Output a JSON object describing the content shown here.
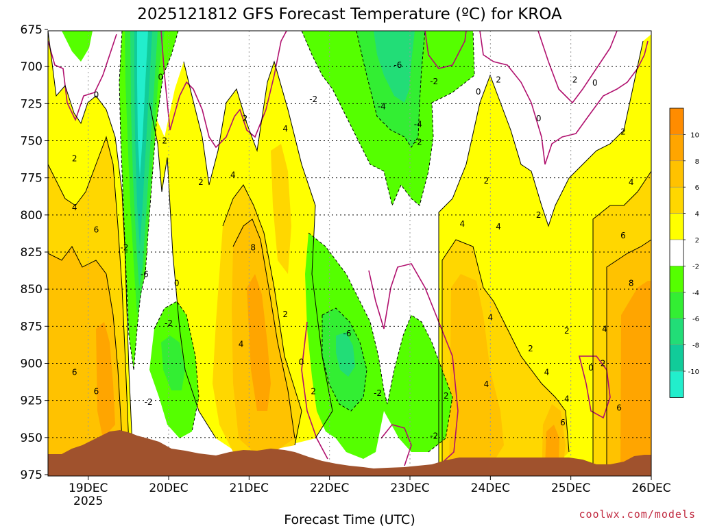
{
  "chart_data": {
    "type": "heatmap",
    "title": "2025121812 GFS Forecast Temperature (ºC) for KROA",
    "xlabel": "Forecast Time (UTC)",
    "ylabel": "",
    "credit": "coolwx.com/models",
    "y_axis": {
      "label_values": [
        "675",
        "700",
        "725",
        "750",
        "775",
        "800",
        "825",
        "850",
        "875",
        "900",
        "925",
        "950",
        "975"
      ],
      "range": [
        975,
        675
      ],
      "units": "hPa (pressure)"
    },
    "x_axis": {
      "tick_labels": [
        "19DEC",
        "20DEC",
        "21DEC",
        "22DEC",
        "23DEC",
        "24DEC",
        "25DEC",
        "26DEC"
      ],
      "year_label": "2025",
      "range": [
        "2025-12-18 12:00",
        "2025-12-26 00:00"
      ]
    },
    "grid": true,
    "colorbar": {
      "placement": "right",
      "labels": [
        "10",
        "8",
        "6",
        "4",
        "2",
        "-2",
        "-4",
        "-6",
        "-8",
        "-10"
      ],
      "bands": [
        {
          "range": [
            10,
            12
          ],
          "color": "#ff8c00"
        },
        {
          "range": [
            8,
            10
          ],
          "color": "#ffa500"
        },
        {
          "range": [
            6,
            8
          ],
          "color": "#ffc200"
        },
        {
          "range": [
            4,
            6
          ],
          "color": "#ffd700"
        },
        {
          "range": [
            2,
            4
          ],
          "color": "#ffff00"
        },
        {
          "range": [
            -2,
            2
          ],
          "color": "#ffffff"
        },
        {
          "range": [
            -4,
            -2
          ],
          "color": "#55ff00"
        },
        {
          "range": [
            -6,
            -4
          ],
          "color": "#33ee33"
        },
        {
          "range": [
            -8,
            -6
          ],
          "color": "#22dd77"
        },
        {
          "range": [
            -10,
            -8
          ],
          "color": "#11cc99"
        },
        {
          "range": [
            -12,
            -10
          ],
          "color": "#22eecc"
        }
      ]
    },
    "terrain_color": "#a0522d",
    "zero_contour_color": "#b0106e",
    "contour_labels": [
      {
        "text": "0",
        "day": 19.1,
        "p": 719
      },
      {
        "text": "0",
        "day": 19.9,
        "p": 707
      },
      {
        "text": "2",
        "day": 18.83,
        "p": 762
      },
      {
        "text": "4",
        "day": 18.83,
        "p": 795
      },
      {
        "text": "6",
        "day": 19.1,
        "p": 810
      },
      {
        "text": "6",
        "day": 18.83,
        "p": 906
      },
      {
        "text": "6",
        "day": 19.1,
        "p": 919
      },
      {
        "text": "-2",
        "day": 19.45,
        "p": 822
      },
      {
        "text": "-6",
        "day": 19.7,
        "p": 840
      },
      {
        "text": "0",
        "day": 20.1,
        "p": 846
      },
      {
        "text": "-2",
        "day": 20.0,
        "p": 873
      },
      {
        "text": "-2",
        "day": 19.75,
        "p": 926
      },
      {
        "text": "2",
        "day": 19.95,
        "p": 750
      },
      {
        "text": "2",
        "day": 20.4,
        "p": 778
      },
      {
        "text": "4",
        "day": 20.8,
        "p": 773
      },
      {
        "text": "2",
        "day": 20.95,
        "p": 735
      },
      {
        "text": "4",
        "day": 21.45,
        "p": 742
      },
      {
        "text": "8",
        "day": 21.05,
        "p": 822
      },
      {
        "text": "4",
        "day": 20.9,
        "p": 887
      },
      {
        "text": "2",
        "day": 21.45,
        "p": 867
      },
      {
        "text": "0",
        "day": 21.65,
        "p": 899
      },
      {
        "text": "2",
        "day": 21.8,
        "p": 919
      },
      {
        "text": "-2",
        "day": 21.8,
        "p": 722
      },
      {
        "text": "-6",
        "day": 22.22,
        "p": 880
      },
      {
        "text": "-2",
        "day": 22.6,
        "p": 920
      },
      {
        "text": "-4",
        "day": 22.65,
        "p": 727
      },
      {
        "text": "-6",
        "day": 22.85,
        "p": 699
      },
      {
        "text": "-4",
        "day": 23.1,
        "p": 739
      },
      {
        "text": "-2",
        "day": 23.1,
        "p": 751
      },
      {
        "text": "-2",
        "day": 23.3,
        "p": 710
      },
      {
        "text": "-2",
        "day": 23.3,
        "p": 949
      },
      {
        "text": "0",
        "day": 23.85,
        "p": 717
      },
      {
        "text": "2",
        "day": 24.1,
        "p": 709
      },
      {
        "text": "0",
        "day": 24.6,
        "p": 735
      },
      {
        "text": "2",
        "day": 25.05,
        "p": 709
      },
      {
        "text": "0",
        "day": 25.3,
        "p": 711
      },
      {
        "text": "2",
        "day": 25.65,
        "p": 744
      },
      {
        "text": "2",
        "day": 23.95,
        "p": 777
      },
      {
        "text": "4",
        "day": 23.65,
        "p": 806
      },
      {
        "text": "4",
        "day": 24.1,
        "p": 808
      },
      {
        "text": "2",
        "day": 24.6,
        "p": 800
      },
      {
        "text": "2",
        "day": 23.45,
        "p": 922
      },
      {
        "text": "4",
        "day": 24.0,
        "p": 869
      },
      {
        "text": "4",
        "day": 23.95,
        "p": 914
      },
      {
        "text": "2",
        "day": 24.5,
        "p": 890
      },
      {
        "text": "4",
        "day": 24.7,
        "p": 906
      },
      {
        "text": "2",
        "day": 24.95,
        "p": 878
      },
      {
        "text": "4",
        "day": 24.95,
        "p": 924
      },
      {
        "text": "6",
        "day": 24.9,
        "p": 940
      },
      {
        "text": "0",
        "day": 25.25,
        "p": 903
      },
      {
        "text": "2",
        "day": 25.4,
        "p": 900
      },
      {
        "text": "4",
        "day": 25.42,
        "p": 877
      },
      {
        "text": "6",
        "day": 25.65,
        "p": 814
      },
      {
        "text": "4",
        "day": 25.75,
        "p": 778
      },
      {
        "text": "8",
        "day": 25.75,
        "p": 846
      },
      {
        "text": "6",
        "day": 25.6,
        "p": 930
      }
    ]
  }
}
